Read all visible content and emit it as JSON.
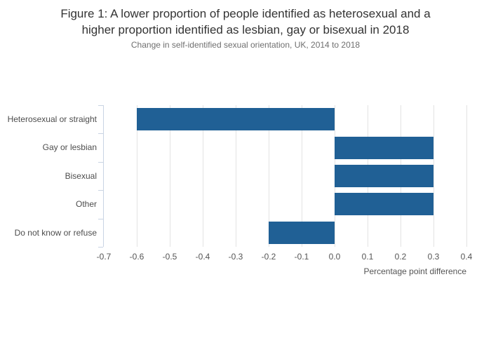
{
  "chart_data": {
    "type": "bar",
    "orientation": "horizontal",
    "title": "Figure 1: A lower proportion of people identified as heterosexual and a higher proportion identified as lesbian, gay or bisexual in 2018",
    "title_lines": [
      "Figure 1: A lower proportion of people identified as heterosexual and a",
      "higher proportion identified as lesbian, gay or bisexual in 2018"
    ],
    "subtitle": "Change in self-identified sexual orientation, UK, 2014 to 2018",
    "categories": [
      "Heterosexual or straight",
      "Gay or lesbian",
      "Bisexual",
      "Other",
      "Do not know or refuse"
    ],
    "values": [
      -0.6,
      0.3,
      0.3,
      0.3,
      -0.2
    ],
    "xlabel": "Percentage point difference",
    "xlim": [
      -0.7,
      0.4
    ],
    "xticks": [
      -0.7,
      -0.6,
      -0.5,
      -0.4,
      -0.3,
      -0.2,
      -0.1,
      0,
      0.1,
      0.2,
      0.3,
      0.4
    ],
    "xtick_labels": [
      "-0.7",
      "-0.6",
      "-0.5",
      "-0.4",
      "-0.3",
      "-0.2",
      "-0.1",
      "0.0",
      "0.1",
      "0.2",
      "0.3",
      "0.4"
    ],
    "grid": true,
    "legend": "none",
    "colors": {
      "bar": "#206095",
      "gridline": "#e3e3e3",
      "axis": "#c9d4e3",
      "title_text": "#333333",
      "subtitle_text": "#6f6f6f",
      "category_text": "#4d4d4d",
      "tick_text": "#555555"
    }
  }
}
